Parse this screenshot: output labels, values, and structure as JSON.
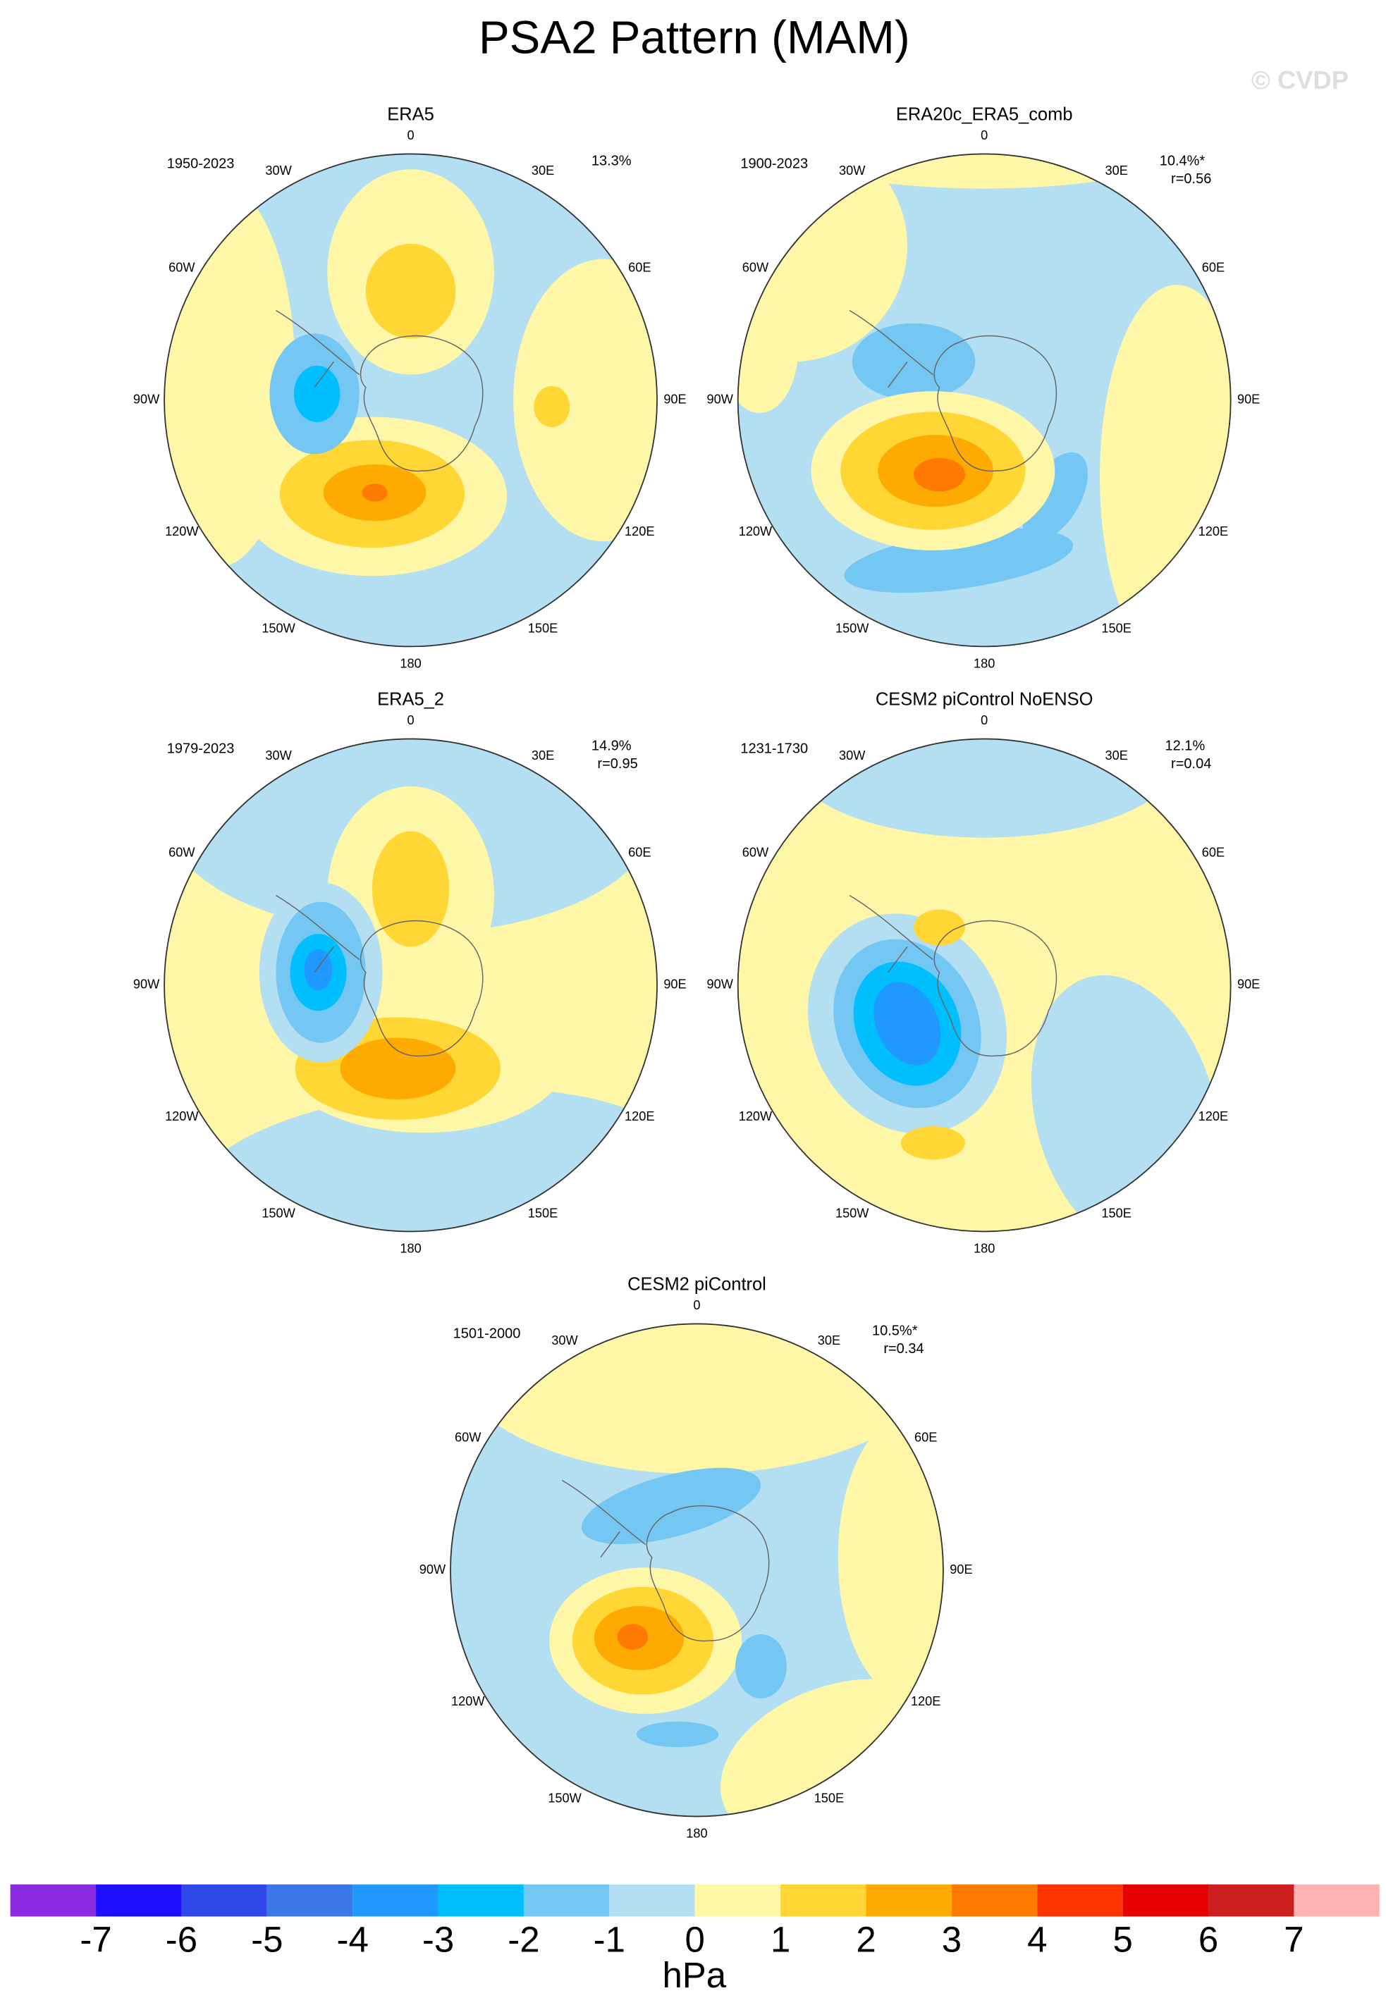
{
  "header": {
    "title": "PSA2 Pattern (MAM)",
    "watermark": "© CVDP"
  },
  "lon_labels": [
    "0",
    "30E",
    "60E",
    "90E",
    "120E",
    "150E",
    "180",
    "150W",
    "120W",
    "90W",
    "60W",
    "30W"
  ],
  "panels": [
    {
      "title": "ERA5",
      "period": "1950-2023",
      "variance": "13.3%"
    },
    {
      "title": "ERA20c_ERA5_comb",
      "period": "1900-2023",
      "variance": "10.4%*",
      "r": "r=0.56"
    },
    {
      "title": "ERA5_2",
      "period": "1979-2023",
      "variance": "14.9%",
      "r": "r=0.95"
    },
    {
      "title": "CESM2 piControl NoENSO",
      "period": "1231-1730",
      "variance": "12.1%",
      "r": "r=0.04"
    },
    {
      "title": "CESM2 piControl",
      "period": "1501-2000",
      "variance": "10.5%*",
      "r": "r=0.34"
    }
  ],
  "colorbar": {
    "colors": [
      "#8a2be2",
      "#1e10ff",
      "#2f48e8",
      "#3a78e8",
      "#1f98ff",
      "#00bfff",
      "#74c7f2",
      "#b4dff2",
      "#fff7a8",
      "#ffd633",
      "#ffaa00",
      "#ff7a00",
      "#ff3300",
      "#e60000",
      "#cc2020",
      "#ffb3b3"
    ],
    "ticks": [
      -7,
      -6,
      -5,
      -4,
      -3,
      -2,
      -1,
      0,
      1,
      2,
      3,
      4,
      5,
      6,
      7
    ],
    "unit": "hPa"
  }
}
